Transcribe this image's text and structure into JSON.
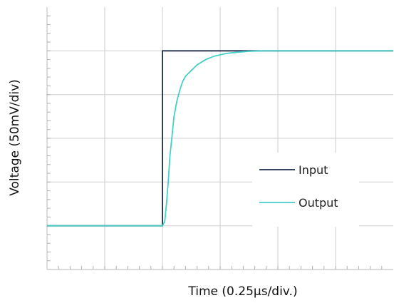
{
  "chart_data": {
    "type": "line",
    "title": "",
    "xlabel": "Time (0.25µs/div.)",
    "ylabel": "Voltage (50mV/div)",
    "grid": true,
    "legend_position": "right-center",
    "xlim": [
      0,
      6
    ],
    "ylim": [
      0,
      6
    ],
    "x_divisions": 6,
    "y_divisions": 6,
    "minor_ticks_per_division": 5,
    "series": [
      {
        "name": "Input",
        "color": "#1b2a49",
        "x": [
          0,
          2,
          2,
          6
        ],
        "y": [
          1,
          1,
          5,
          5
        ]
      },
      {
        "name": "Output",
        "color": "#44cfcb",
        "x": [
          0,
          2.0,
          2.04,
          2.07,
          2.1,
          2.13,
          2.17,
          2.2,
          2.25,
          2.3,
          2.35,
          2.4,
          2.5,
          2.6,
          2.75,
          2.9,
          3.1,
          3.3,
          3.5,
          3.75,
          4.0,
          6
        ],
        "y": [
          1,
          1,
          1.1,
          1.5,
          2.0,
          2.6,
          3.1,
          3.5,
          3.85,
          4.1,
          4.3,
          4.42,
          4.55,
          4.68,
          4.8,
          4.88,
          4.94,
          4.97,
          4.99,
          5.0,
          5.0,
          5.0
        ]
      }
    ]
  }
}
